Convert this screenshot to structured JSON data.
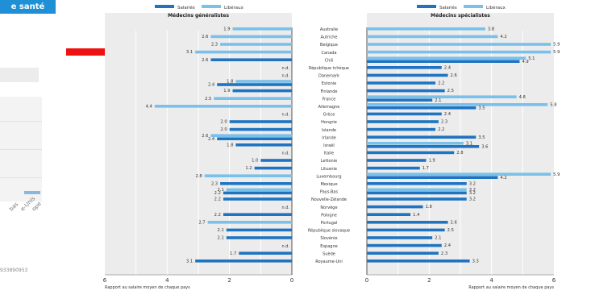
{
  "page": {
    "header_text": "e santé",
    "left_rotated_labels": [
      "bas",
      "e-Unis",
      "ope"
    ],
    "left_footnote": "933890953"
  },
  "colors": {
    "salaried": "#1f74c2",
    "self_employed": "#79c0ea",
    "panel_bg": "#ececec",
    "arrow": "#ee1111",
    "header_bg": "#1f8fd6"
  },
  "chart_data": [
    {
      "type": "bar",
      "orientation": "horizontal",
      "title": "Médecins généralistes",
      "xlabel": "Rapport au salaire moyen de chaque pays",
      "xlim": [
        0,
        6
      ],
      "x_reversed": true,
      "xticks": [
        6,
        4,
        2,
        0
      ],
      "grid": true,
      "legend": {
        "placement": "top",
        "entries": [
          "Salariés",
          "Libéraux"
        ]
      },
      "categories": [
        "Australie",
        "Autriche",
        "Belgique",
        "Canada",
        "Chili",
        "République tchèque",
        "Danemark",
        "Estonie",
        "Finlande",
        "France",
        "Allemagne",
        "Grèce",
        "Hongrie",
        "Islande",
        "Irlande",
        "Israël",
        "Italie",
        "Lettonie",
        "Lituanie",
        "Luxembourg",
        "Mexique",
        "Pays-Bas",
        "Nouvelle-Zélande",
        "Norvège",
        "Pologne",
        "Portugal",
        "République slovaque",
        "Slovénie",
        "Espagne",
        "Suède",
        "Royaume-Uni"
      ],
      "series": [
        {
          "name": "Salariés",
          "values": [
            null,
            null,
            null,
            null,
            2.6,
            null,
            null,
            2.4,
            1.9,
            null,
            null,
            null,
            2.0,
            2.0,
            2.4,
            1.8,
            null,
            1.0,
            1.2,
            null,
            2.3,
            2.2,
            2.2,
            null,
            2.2,
            null,
            2.1,
            2.1,
            null,
            1.7,
            3.1
          ]
        },
        {
          "name": "Libéraux",
          "values": [
            1.9,
            2.6,
            2.3,
            3.1,
            null,
            null,
            null,
            1.8,
            null,
            2.5,
            4.4,
            null,
            null,
            null,
            2.6,
            null,
            null,
            null,
            null,
            2.8,
            null,
            2.1,
            null,
            null,
            null,
            2.7,
            null,
            null,
            null,
            null,
            null
          ]
        }
      ],
      "annotations": [
        "n.d.",
        "n.d.",
        "n.d.",
        "n.d.",
        "n.d.",
        "n.d.",
        "n.d.",
        "n.d.",
        "n.d.",
        "n.d.",
        "n.d."
      ]
    },
    {
      "type": "bar",
      "orientation": "horizontal",
      "title": "Médecins spécialistes",
      "xlabel": "Rapport au salaire moyen de chaque pays",
      "xlim": [
        0,
        6
      ],
      "xticks": [
        0,
        2,
        4,
        6
      ],
      "grid": true,
      "legend": {
        "placement": "top",
        "entries": [
          "Salariés",
          "Libéraux"
        ]
      },
      "categories": [
        "Australie",
        "Autriche",
        "Belgique",
        "Canada",
        "Chili",
        "République tchèque",
        "Danemark",
        "Estonie",
        "Finlande",
        "France",
        "Allemagne",
        "Grèce",
        "Hongrie",
        "Islande",
        "Irlande",
        "Israël",
        "Italie",
        "Lettonie",
        "Lituanie",
        "Luxembourg",
        "Mexique",
        "Pays-Bas",
        "Nouvelle-Zélande",
        "Norvège",
        "Pologne",
        "Portugal",
        "République slovaque",
        "Slovénie",
        "Espagne",
        "Suède",
        "Royaume-Uni"
      ],
      "series": [
        {
          "name": "Salariés",
          "values": [
            null,
            null,
            null,
            null,
            4.9,
            2.4,
            2.6,
            2.2,
            2.5,
            2.1,
            3.5,
            2.4,
            2.3,
            2.2,
            3.5,
            3.6,
            2.8,
            1.9,
            1.7,
            4.2,
            3.2,
            3.2,
            3.2,
            1.8,
            1.4,
            2.6,
            2.5,
            2.1,
            2.4,
            2.3,
            3.3
          ]
        },
        {
          "name": "Libéraux",
          "values": [
            3.8,
            4.2,
            5.9,
            5.9,
            5.1,
            null,
            null,
            null,
            null,
            4.8,
            5.8,
            null,
            null,
            null,
            null,
            3.1,
            null,
            null,
            null,
            5.9,
            null,
            3.2,
            null,
            null,
            null,
            null,
            null,
            null,
            null,
            null,
            null
          ]
        }
      ]
    }
  ],
  "figure_labels": {
    "n_d": "n.d."
  }
}
